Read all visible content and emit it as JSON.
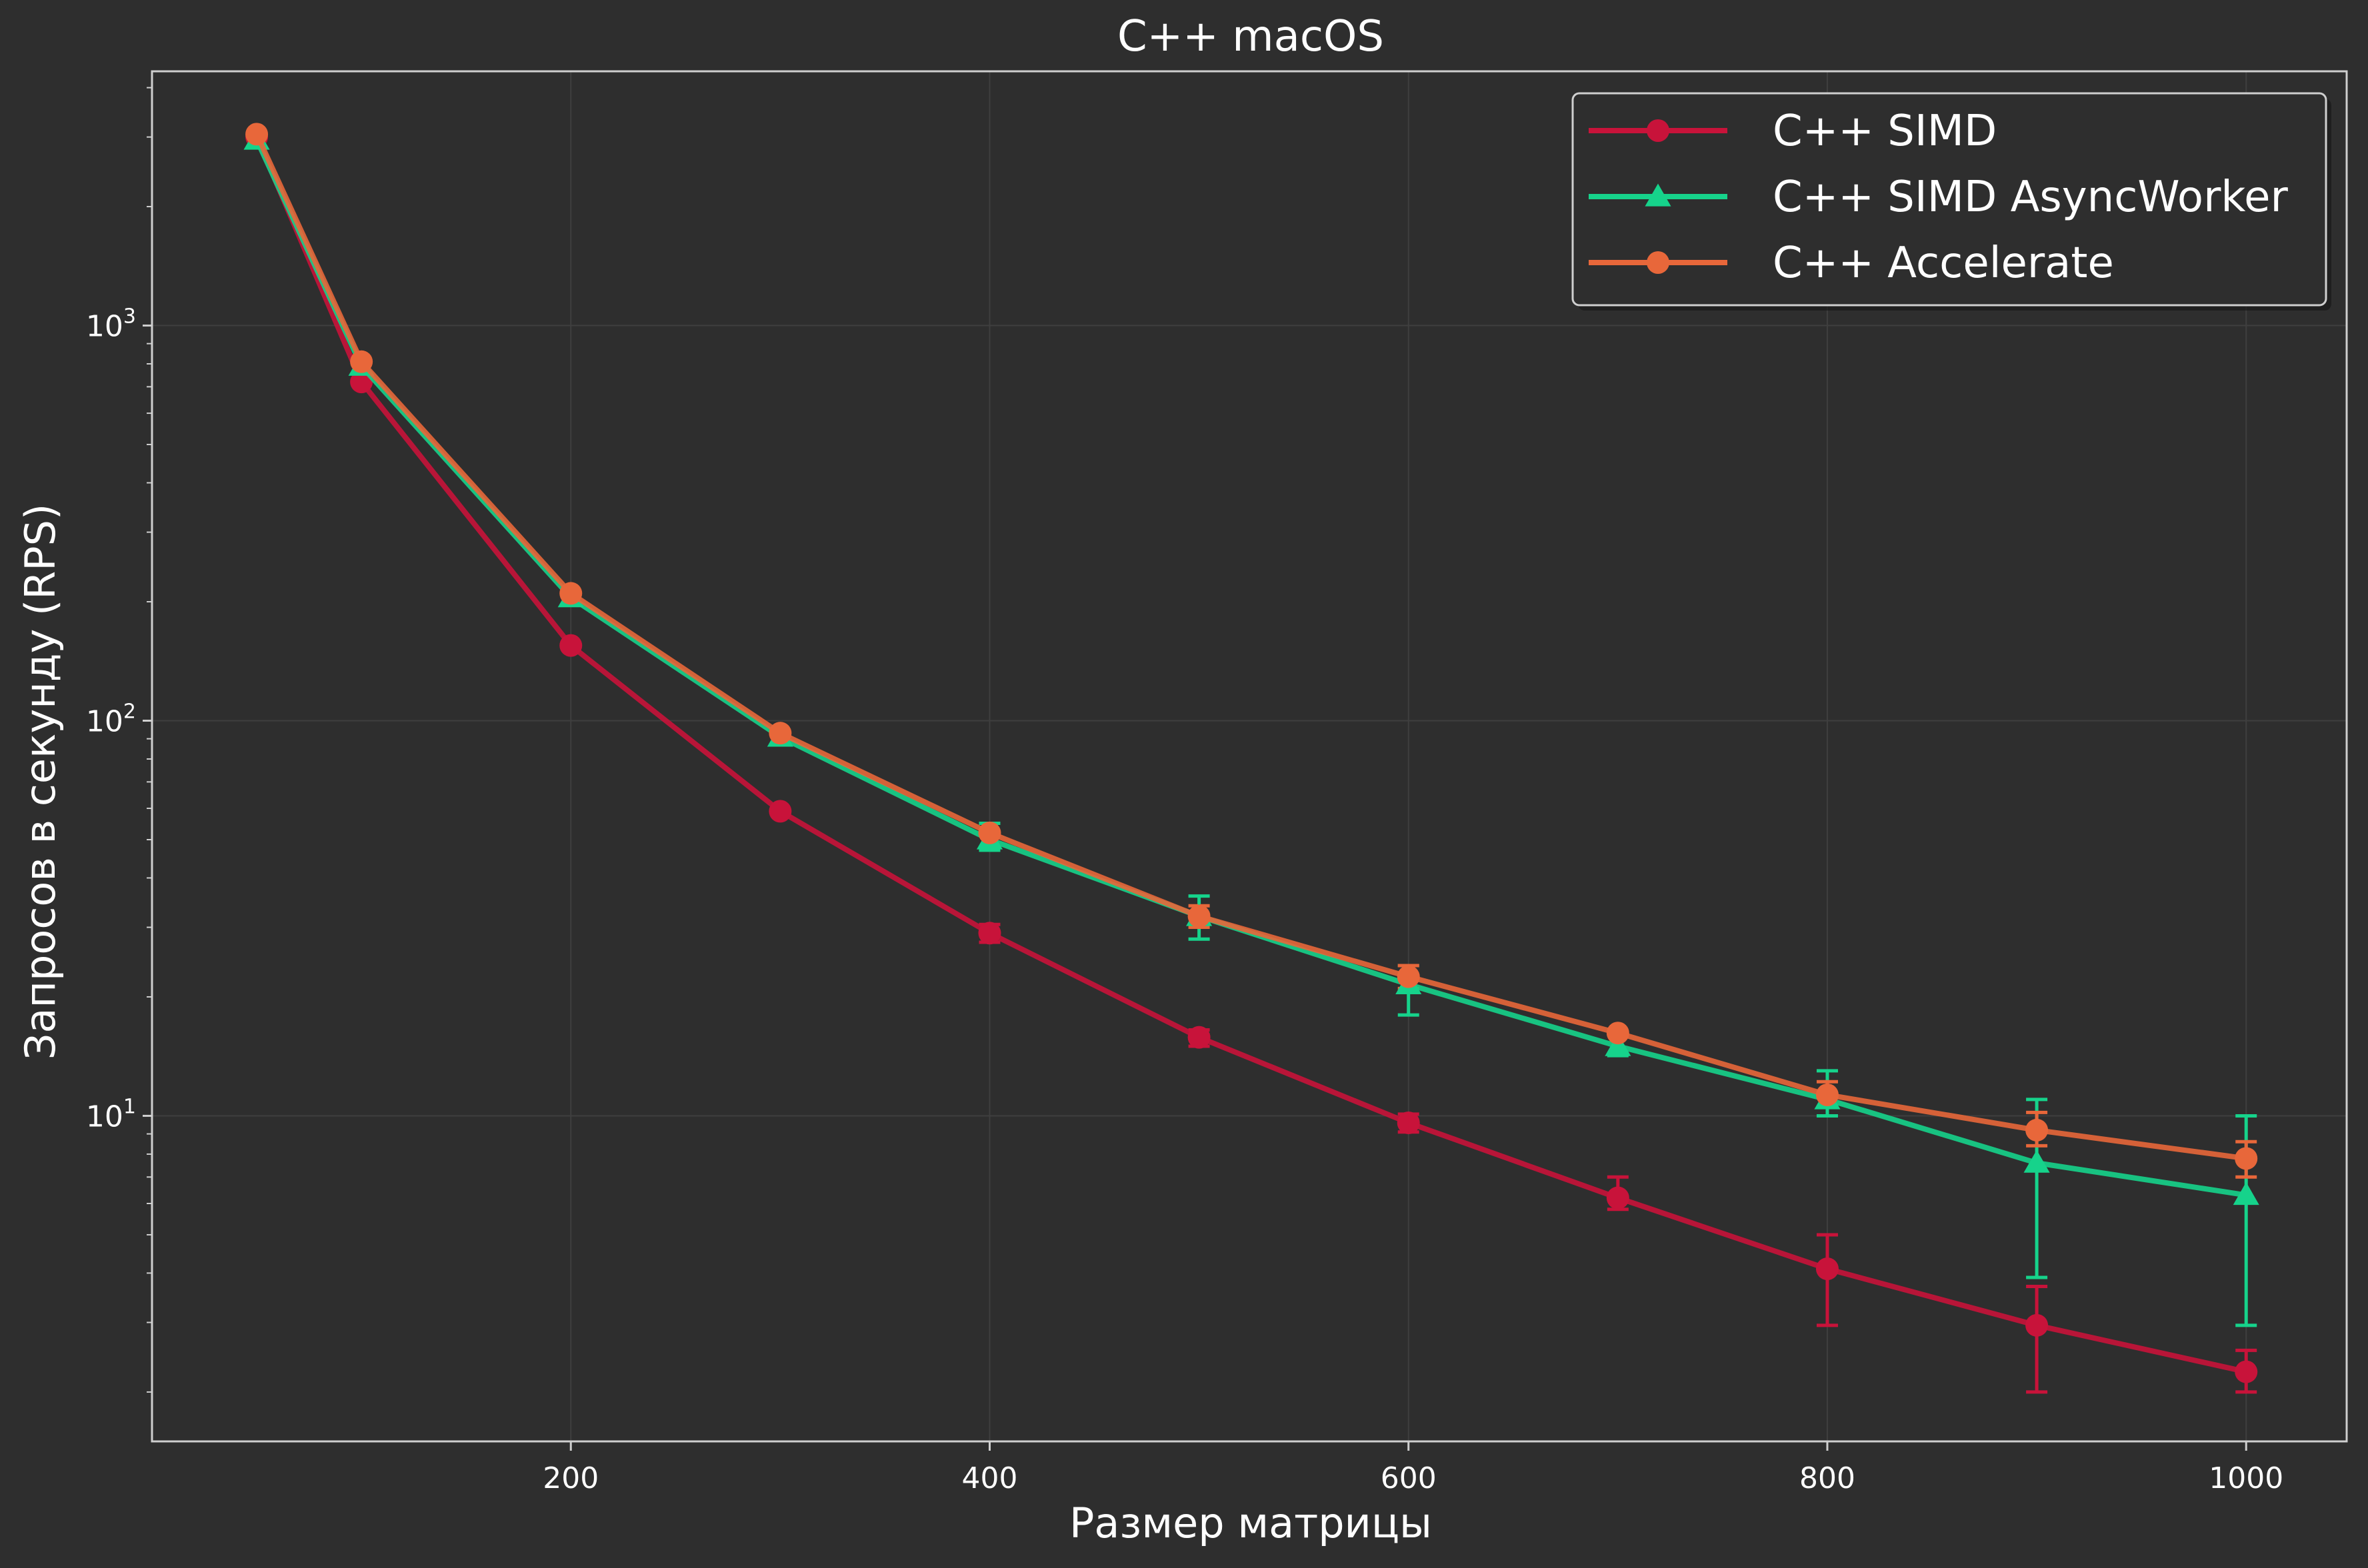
{
  "chart_data": {
    "type": "line",
    "title": "C++ macOS",
    "xlabel": "Размер матрицы",
    "ylabel": "Запросов в секунду (RPS)",
    "xlim": [
      0,
      1048
    ],
    "ylim": [
      1.5,
      4400
    ],
    "yscale": "log",
    "grid": true,
    "legend_position": "top-right",
    "x_ticks": [
      200,
      400,
      600,
      800,
      1000
    ],
    "x_tick_labels": [
      "200",
      "400",
      "600",
      "800",
      "1000"
    ],
    "y_major_ticks": [
      10,
      100,
      1000
    ],
    "y_tick_labels": [
      {
        "base": "10",
        "exp": "1"
      },
      {
        "base": "10",
        "exp": "2"
      },
      {
        "base": "10",
        "exp": "3"
      }
    ],
    "colors": {
      "background": "#2e2e2e",
      "frame": "#cfcfcf",
      "grid": "#3f3f3f"
    },
    "series": [
      {
        "name": "C++ SIMD",
        "color": "#c8133a",
        "marker": "circle",
        "x": [
          50,
          100,
          200,
          300,
          400,
          500,
          600,
          700,
          800,
          900,
          1000
        ],
        "y": [
          3000,
          720,
          155,
          59,
          29,
          15.8,
          9.6,
          6.2,
          4.1,
          2.95,
          2.25
        ],
        "err_low": [
          null,
          null,
          null,
          null,
          27.5,
          15.0,
          9.1,
          5.8,
          2.95,
          2.0,
          2.0
        ],
        "err_high": [
          null,
          null,
          null,
          null,
          30.5,
          16.5,
          10.1,
          7.0,
          5.0,
          3.7,
          2.55
        ]
      },
      {
        "name": "C++ SIMD AsyncWorker",
        "color": "#16d38b",
        "marker": "triangle",
        "x": [
          50,
          100,
          200,
          300,
          400,
          500,
          600,
          700,
          800,
          900,
          1000
        ],
        "y": [
          2950,
          790,
          205,
          91,
          50,
          32,
          21.5,
          15.0,
          11.0,
          7.6,
          6.3
        ],
        "err_low": [
          null,
          null,
          null,
          null,
          47,
          28,
          18,
          14.2,
          10.0,
          3.9,
          2.95
        ],
        "err_high": [
          null,
          null,
          null,
          null,
          55,
          36,
          24,
          16.0,
          13.0,
          11.0,
          10.0
        ]
      },
      {
        "name": "C++ Accelerate",
        "color": "#e8673a",
        "marker": "circle",
        "x": [
          50,
          100,
          200,
          300,
          400,
          500,
          600,
          700,
          800,
          900,
          1000
        ],
        "y": [
          3050,
          810,
          210,
          93,
          52,
          32,
          22.5,
          16.2,
          11.3,
          9.2,
          7.8
        ],
        "err_low": [
          null,
          null,
          null,
          null,
          null,
          30,
          21,
          null,
          10.5,
          8.4,
          7.0
        ],
        "err_high": [
          null,
          null,
          null,
          null,
          null,
          34,
          24,
          null,
          12.2,
          10.2,
          8.6
        ]
      }
    ]
  }
}
